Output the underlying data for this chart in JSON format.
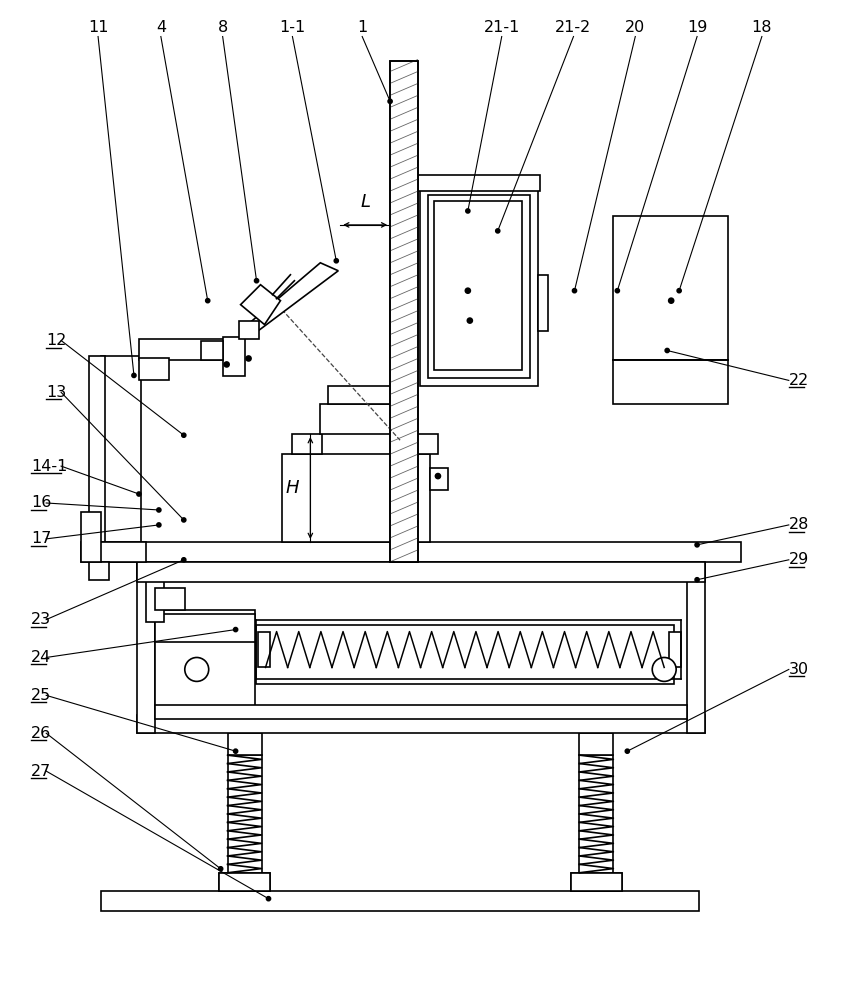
{
  "bg": "#ffffff",
  "lc": "#000000",
  "lw": 1.2,
  "fig_w": 8.43,
  "fig_h": 10.0,
  "dpi": 100,
  "top_labels": [
    [
      "11",
      97,
      965,
      133,
      625
    ],
    [
      "4",
      160,
      965,
      207,
      700
    ],
    [
      "8",
      222,
      965,
      256,
      720
    ],
    [
      "1-1",
      292,
      965,
      336,
      740
    ],
    [
      "1",
      362,
      965,
      390,
      900
    ],
    [
      "21-1",
      502,
      965,
      468,
      790
    ],
    [
      "21-2",
      574,
      965,
      498,
      770
    ],
    [
      "20",
      636,
      965,
      575,
      710
    ],
    [
      "19",
      698,
      965,
      618,
      710
    ],
    [
      "18",
      763,
      965,
      680,
      710
    ]
  ],
  "left_labels": [
    [
      "12",
      45,
      660,
      183,
      565
    ],
    [
      "13",
      45,
      608,
      183,
      480
    ],
    [
      "14-1",
      30,
      534,
      138,
      506
    ],
    [
      "16",
      30,
      497,
      158,
      490
    ],
    [
      "17",
      30,
      461,
      158,
      475
    ],
    [
      "23",
      30,
      380,
      183,
      440
    ],
    [
      "24",
      30,
      342,
      235,
      370
    ],
    [
      "25",
      30,
      304,
      235,
      248
    ],
    [
      "26",
      30,
      266,
      220,
      130
    ],
    [
      "27",
      30,
      228,
      268,
      100
    ]
  ],
  "right_labels": [
    [
      "22",
      790,
      620,
      668,
      650
    ],
    [
      "28",
      790,
      475,
      698,
      455
    ],
    [
      "29",
      790,
      440,
      698,
      420
    ],
    [
      "30",
      790,
      330,
      628,
      248
    ]
  ]
}
